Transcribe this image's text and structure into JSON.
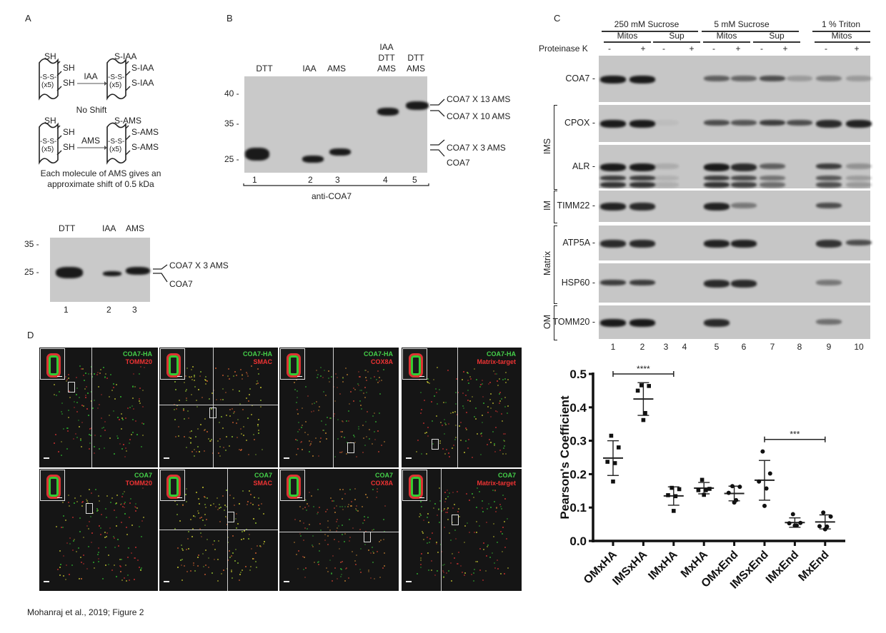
{
  "panel_a": {
    "label": "A",
    "scheme": {
      "sh": "SH",
      "ss": "-S-S-",
      "x5": "(x5)",
      "iaa_arrow": "IAA",
      "s_iaa": "S-IAA",
      "no_shift": "No Shift",
      "ams_arrow": "AMS",
      "s_ams": "S-AMS",
      "caption_line1": "Each molecule of AMS gives an",
      "caption_line2": "approximate shift of 0.5 kDa"
    },
    "blot": {
      "lane_headers": [
        "DTT",
        "IAA",
        "AMS"
      ],
      "markers": [
        "35 -",
        "25 -"
      ],
      "right_labels": [
        "COA7 X 3 AMS",
        "COA7"
      ],
      "lane_numbers": [
        "1",
        "2",
        "3"
      ],
      "bands_kda": [
        25.2,
        23.8,
        25.3
      ]
    }
  },
  "panel_b": {
    "label": "B",
    "lane_headers": [
      "DTT",
      "IAA",
      "AMS",
      "IAA\nDTT\nAMS",
      "DTT\nAMS"
    ],
    "lane_header_lines": [
      [
        "DTT"
      ],
      [
        "IAA"
      ],
      [
        "AMS"
      ],
      [
        "IAA",
        "DTT",
        "AMS"
      ],
      [
        "DTT",
        "AMS"
      ]
    ],
    "markers": [
      "40 -",
      "35 -",
      "25 -"
    ],
    "marker_kda": [
      40,
      35,
      25
    ],
    "right_labels": [
      "COA7 X 13 AMS",
      "COA7 X 10 AMS",
      "COA7 X 3 AMS",
      "COA7"
    ],
    "lane_numbers": [
      "1",
      "2",
      "3",
      "4",
      "5"
    ],
    "bands_kda": [
      26.5,
      25,
      27,
      37,
      38
    ],
    "antibody": "anti-COA7"
  },
  "panel_c": {
    "label": "C",
    "conditions": [
      "250 mM Sucrose",
      "5 mM Sucrose",
      "1 % Triton"
    ],
    "fractions": [
      "Mitos",
      "Sup",
      "Mitos",
      "Sup",
      "Mitos"
    ],
    "proteinase_label": "Proteinase K",
    "proteinase": [
      "-",
      "+",
      "-",
      "+",
      "-",
      "+",
      "-",
      "+",
      "-",
      "+"
    ],
    "blots": [
      {
        "name": "COA7 -",
        "intensity": [
          1,
          1,
          0,
          0,
          0.6,
          0.55,
          0.7,
          0.25,
          0.4,
          0.25
        ]
      },
      {
        "name": "CPOX -",
        "intensity": [
          1,
          1,
          0.05,
          0,
          0.7,
          0.65,
          0.8,
          0.7,
          0.9,
          0.95
        ]
      },
      {
        "name": "ALR -",
        "intensity": [
          1,
          1,
          0.15,
          0,
          1,
          0.9,
          0.6,
          0,
          0.8,
          0.3
        ]
      },
      {
        "name": "TIMM22 -",
        "intensity": [
          0.95,
          0.9,
          0,
          0,
          0.95,
          0.45,
          0,
          0,
          0.7,
          0
        ]
      },
      {
        "name": "ATP5A -",
        "intensity": [
          0.9,
          0.9,
          0,
          0,
          0.95,
          0.95,
          0,
          0,
          0.85,
          0.7
        ]
      },
      {
        "name": "HSP60 -",
        "intensity": [
          0.8,
          0.8,
          0,
          0,
          0.9,
          0.9,
          0,
          0,
          0.45,
          0
        ]
      },
      {
        "name": "TOMM20 -",
        "intensity": [
          1,
          1,
          0,
          0,
          0.9,
          0,
          0,
          0,
          0.5,
          0
        ]
      }
    ],
    "groups": [
      "IMS",
      "IM",
      "Matrix",
      "OM"
    ],
    "lane_numbers": [
      "1",
      "2",
      "3",
      "4",
      "5",
      "6",
      "7",
      "8",
      "9",
      "10"
    ]
  },
  "panel_d": {
    "label": "D",
    "images": [
      {
        "green": "COA7-HA",
        "red": "TOMM20"
      },
      {
        "green": "COA7-HA",
        "red": "SMAC"
      },
      {
        "green": "COA7-HA",
        "red": "COX8A"
      },
      {
        "green": "COA7-HA",
        "red": "Matrix-target"
      },
      {
        "green": "COA7",
        "red": "TOMM20"
      },
      {
        "green": "COA7",
        "red": "SMAC"
      },
      {
        "green": "COA7",
        "red": "COX8A"
      },
      {
        "green": "COA7",
        "red": "Matrix-target"
      }
    ]
  },
  "chart_data": {
    "type": "scatter",
    "ylabel": "Pearson's Coefficient",
    "xlabel": "",
    "ylim": [
      0,
      0.5
    ],
    "yticks": [
      "0.0",
      "0.1",
      "0.2",
      "0.3",
      "0.4",
      "0.5"
    ],
    "categories": [
      "OMxHA",
      "IMSxHA",
      "IMxHA",
      "MxHA",
      "OMxEnd",
      "IMSxEnd",
      "IMxEnd",
      "MxEnd"
    ],
    "groups": [
      {
        "category": "OMxHA",
        "marker": "square",
        "mean": 0.248,
        "sd_upper": 0.3,
        "sd_lower": 0.196,
        "points": [
          0.315,
          0.28,
          0.237,
          0.233,
          0.178
        ]
      },
      {
        "category": "IMSxHA",
        "marker": "square",
        "mean": 0.425,
        "sd_upper": 0.474,
        "sd_lower": 0.376,
        "points": [
          0.466,
          0.464,
          0.45,
          0.383,
          0.362
        ]
      },
      {
        "category": "IMxHA",
        "marker": "square",
        "mean": 0.135,
        "sd_upper": 0.162,
        "sd_lower": 0.107,
        "points": [
          0.159,
          0.155,
          0.137,
          0.134,
          0.09
        ]
      },
      {
        "category": "MxHA",
        "marker": "square",
        "mean": 0.158,
        "sd_upper": 0.175,
        "sd_lower": 0.141,
        "points": [
          0.183,
          0.156,
          0.152,
          0.152,
          0.138
        ]
      },
      {
        "category": "OMxEnd",
        "marker": "circle",
        "mean": 0.142,
        "sd_upper": 0.164,
        "sd_lower": 0.12,
        "points": [
          0.164,
          0.162,
          0.144,
          0.122,
          0.115
        ]
      },
      {
        "category": "IMSxEnd",
        "marker": "circle",
        "mean": 0.182,
        "sd_upper": 0.241,
        "sd_lower": 0.122,
        "points": [
          0.268,
          0.202,
          0.178,
          0.157,
          0.105
        ]
      },
      {
        "category": "IMxEnd",
        "marker": "circle",
        "mean": 0.055,
        "sd_upper": 0.069,
        "sd_lower": 0.041,
        "points": [
          0.08,
          0.054,
          0.053,
          0.046,
          0.046
        ]
      },
      {
        "category": "MxEnd",
        "marker": "circle",
        "mean": 0.057,
        "sd_upper": 0.078,
        "sd_lower": 0.036,
        "points": [
          0.085,
          0.073,
          0.044,
          0.043,
          0.035
        ]
      }
    ],
    "significance": [
      {
        "from": "OMxHA",
        "to": "IMxHA",
        "value": 0.5,
        "label": "****"
      },
      {
        "from": "IMSxEnd",
        "to": "MxEnd",
        "value": 0.304,
        "label": "***"
      }
    ],
    "grid": false,
    "legend": "none"
  },
  "footer": {
    "citation": "Mohanraj et al., 2019; Figure 2"
  }
}
